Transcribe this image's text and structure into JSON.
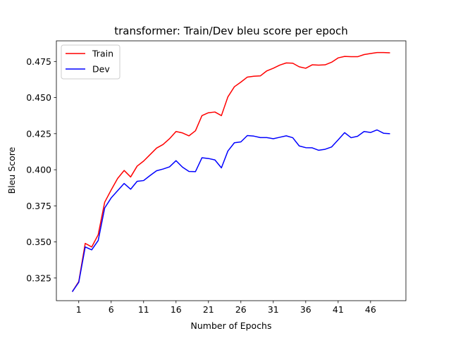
{
  "chart_data": {
    "type": "line",
    "title": "transformer: Train/Dev bleu score per epoch",
    "xlabel": "Number of Epochs",
    "ylabel": "Bleu Score",
    "xlim": [
      -2.45,
      51.45
    ],
    "ylim": [
      0.3093,
      0.4893
    ],
    "xticks": [
      1,
      6,
      11,
      16,
      21,
      26,
      31,
      36,
      41,
      46
    ],
    "yticks": [
      0.325,
      0.35,
      0.375,
      0.4,
      0.425,
      0.45,
      0.475
    ],
    "ytick_labels": [
      "0.325",
      "0.350",
      "0.375",
      "0.400",
      "0.425",
      "0.450",
      "0.475"
    ],
    "grid": false,
    "legend_position": "upper-left",
    "x": [
      0,
      1,
      2,
      3,
      4,
      5,
      6,
      7,
      8,
      9,
      10,
      11,
      12,
      13,
      14,
      15,
      16,
      17,
      18,
      19,
      20,
      21,
      22,
      23,
      24,
      25,
      26,
      27,
      28,
      29,
      30,
      31,
      32,
      33,
      34,
      35,
      36,
      37,
      38,
      39,
      40,
      41,
      42,
      43,
      44,
      45,
      46,
      47,
      48,
      49
    ],
    "series": [
      {
        "name": "Train",
        "color": "#ff0000",
        "values": [
          0.3155,
          0.3225,
          0.349,
          0.3465,
          0.355,
          0.3775,
          0.386,
          0.394,
          0.3995,
          0.395,
          0.4025,
          0.406,
          0.4105,
          0.415,
          0.4175,
          0.4215,
          0.4265,
          0.4255,
          0.4235,
          0.427,
          0.4375,
          0.4395,
          0.44,
          0.4375,
          0.4505,
          0.4575,
          0.4607,
          0.4642,
          0.4648,
          0.465,
          0.4685,
          0.4703,
          0.4725,
          0.474,
          0.4738,
          0.4713,
          0.4703,
          0.4727,
          0.4725,
          0.4727,
          0.4745,
          0.4775,
          0.4785,
          0.4783,
          0.4783,
          0.4798,
          0.4805,
          0.4812,
          0.4812,
          0.481
        ]
      },
      {
        "name": "Dev",
        "color": "#0000ff",
        "values": [
          0.3155,
          0.322,
          0.3465,
          0.3445,
          0.351,
          0.3735,
          0.3805,
          0.3855,
          0.3905,
          0.3865,
          0.392,
          0.3925,
          0.396,
          0.3993,
          0.4005,
          0.402,
          0.4063,
          0.4018,
          0.3988,
          0.3987,
          0.4083,
          0.4078,
          0.4068,
          0.4013,
          0.413,
          0.4187,
          0.4193,
          0.4237,
          0.4233,
          0.4223,
          0.4223,
          0.4215,
          0.4225,
          0.4235,
          0.4222,
          0.4165,
          0.4153,
          0.4152,
          0.4135,
          0.4142,
          0.4158,
          0.4207,
          0.4257,
          0.4222,
          0.4232,
          0.4265,
          0.4258,
          0.4276,
          0.4253,
          0.425
        ]
      }
    ]
  }
}
